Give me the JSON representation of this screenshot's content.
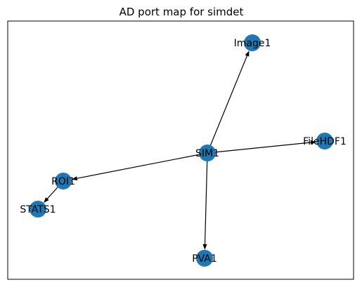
{
  "diagram": {
    "title": "AD port map for simdet",
    "node_color": "#1f77b4",
    "nodes": [
      {
        "id": "SIM1",
        "label": "SIM1"
      },
      {
        "id": "Image1",
        "label": "Image1"
      },
      {
        "id": "FileHDF1",
        "label": "FileHDF1"
      },
      {
        "id": "ROI1",
        "label": "ROI1"
      },
      {
        "id": "STATS1",
        "label": "STATS1"
      },
      {
        "id": "PVA1",
        "label": "PVA1"
      }
    ],
    "edges": [
      {
        "from": "SIM1",
        "to": "Image1"
      },
      {
        "from": "SIM1",
        "to": "FileHDF1"
      },
      {
        "from": "SIM1",
        "to": "ROI1"
      },
      {
        "from": "SIM1",
        "to": "PVA1"
      },
      {
        "from": "ROI1",
        "to": "STATS1"
      }
    ]
  }
}
